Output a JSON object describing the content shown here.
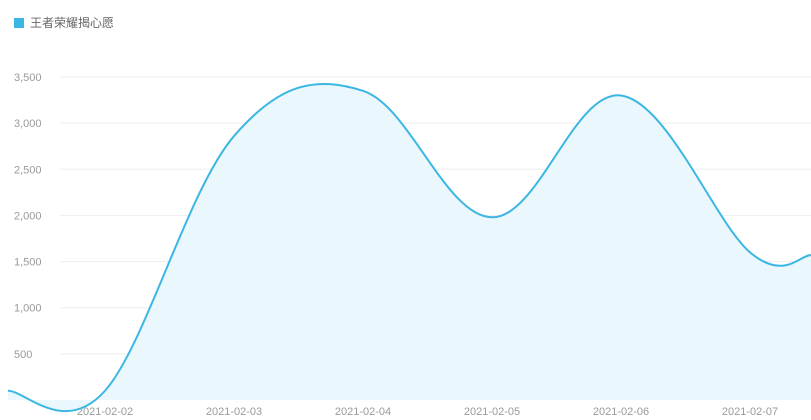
{
  "legend": {
    "label": "王者荣耀揭心愿"
  },
  "colors": {
    "line": "#3cb6e3",
    "area": "#eaf7fc",
    "grid": "#eeeeee",
    "text": "#9a9a9a"
  },
  "chart_data": {
    "type": "area",
    "x": [
      "2021-02-02",
      "2021-02-03",
      "2021-02-04",
      "2021-02-05",
      "2021-02-06",
      "2021-02-07"
    ],
    "series": [
      {
        "name": "王者荣耀揭心愿",
        "values": [
          100,
          2860,
          3350,
          1980,
          3300,
          1600
        ]
      }
    ],
    "y_ticks": [
      500,
      1000,
      1500,
      2000,
      2500,
      3000,
      3500
    ],
    "y_tick_labels": [
      "500",
      "1,000",
      "1,500",
      "2,000",
      "2,500",
      "3,000",
      "3,500"
    ],
    "ylim": [
      0,
      3500
    ],
    "grid": true,
    "legend_position": "top-left"
  }
}
